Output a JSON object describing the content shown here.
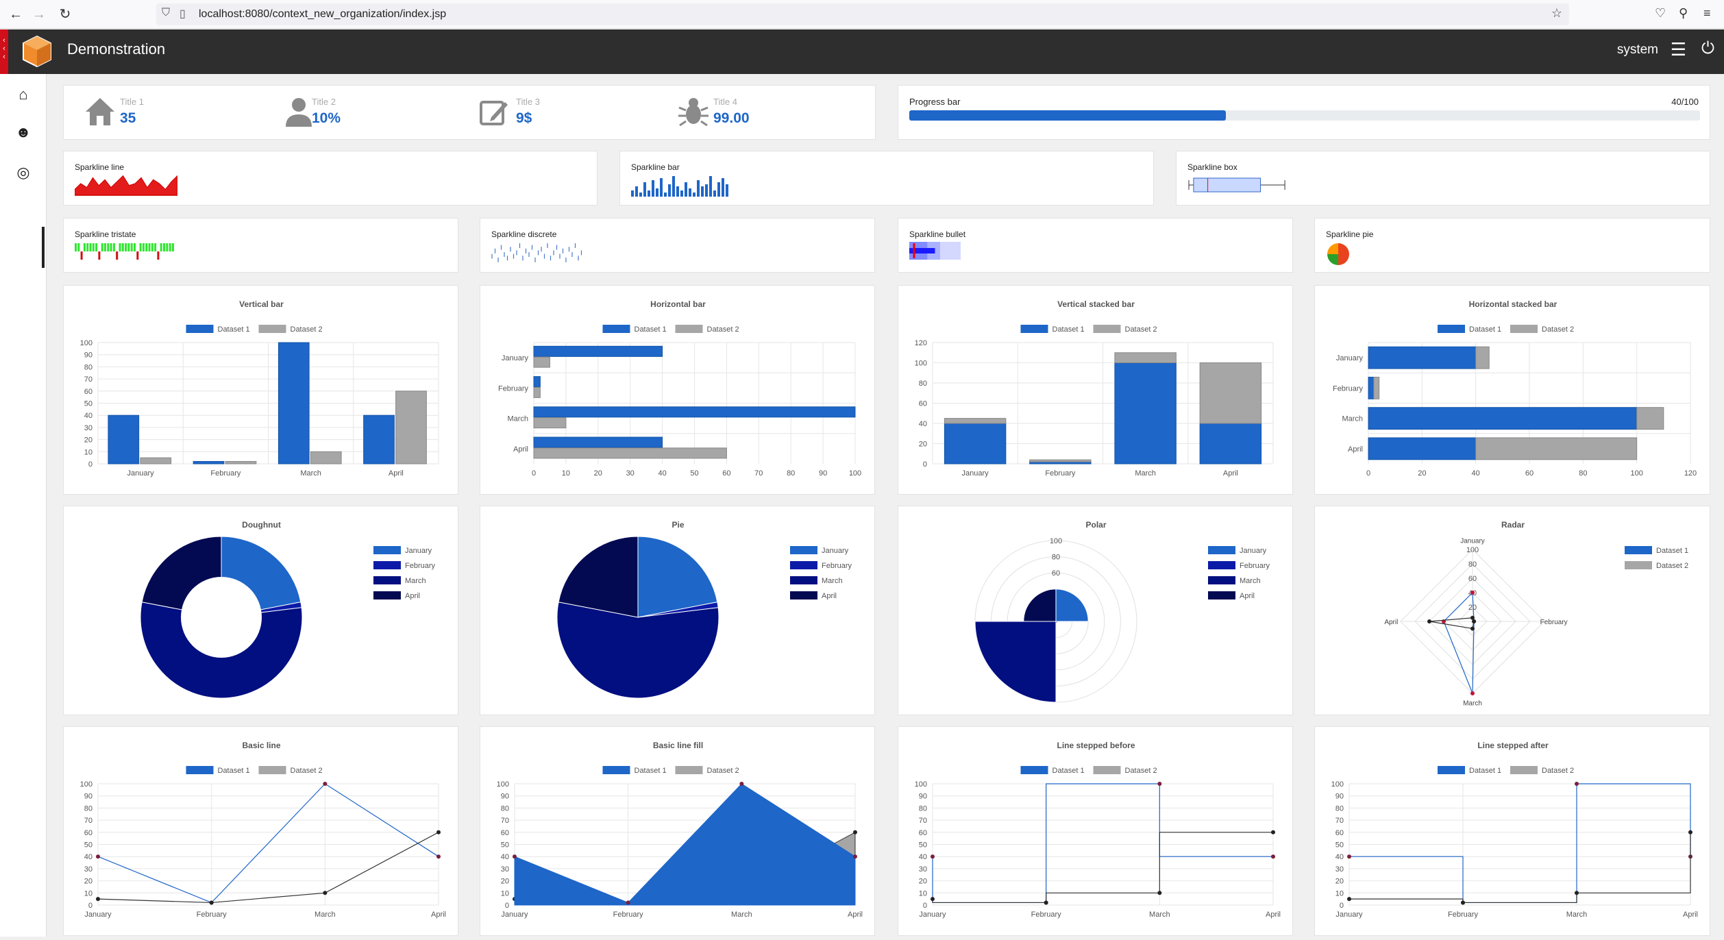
{
  "browser": {
    "url": "localhost:8080/context_new_organization/index.jsp",
    "back": "←",
    "forward": "→",
    "reload": "↻"
  },
  "app": {
    "title": "Demonstration",
    "user": "system"
  },
  "kpis": [
    {
      "label": "Title 1",
      "value": "35",
      "icon": "house-icon"
    },
    {
      "label": "Title 2",
      "value": "10%",
      "icon": "user-icon"
    },
    {
      "label": "Title 3",
      "value": "9$",
      "icon": "edit-icon"
    },
    {
      "label": "Title 4",
      "value": "99.00",
      "icon": "bug-icon"
    }
  ],
  "progress": {
    "label": "Progress bar",
    "text": "40/100",
    "value": 0.4,
    "color": "#1e66c8"
  },
  "sparklines": {
    "line": {
      "label": "Sparkline line",
      "values": [
        3,
        6,
        4,
        9,
        5,
        8,
        4,
        7,
        10,
        5,
        6,
        9,
        4,
        8,
        6,
        3,
        7,
        10
      ]
    },
    "bar": {
      "label": "Sparkline bar",
      "values": [
        3,
        5,
        2,
        7,
        3,
        8,
        4,
        9,
        2,
        6,
        10,
        5,
        3,
        7,
        4,
        2,
        8,
        5,
        6,
        10,
        3,
        7,
        9,
        6
      ]
    },
    "box": {
      "label": "Sparkline box",
      "low": 0,
      "q1": 3,
      "median": 10,
      "q3": 36,
      "high": 48,
      "max": 50
    },
    "tristate": {
      "label": "Sparkline tristate",
      "values": [
        1,
        1,
        -1,
        1,
        1,
        1,
        1,
        1,
        -1,
        1,
        1,
        1,
        1,
        1,
        -1,
        1,
        1,
        1,
        1,
        1,
        1,
        -1,
        1,
        1,
        1,
        1,
        1,
        1,
        -1,
        1,
        1,
        1,
        1,
        1
      ]
    },
    "discrete": {
      "label": "Sparkline discrete",
      "values": [
        4,
        7,
        2,
        9,
        5,
        3,
        8,
        4,
        6,
        10,
        3,
        7,
        5,
        9,
        2,
        6,
        8,
        4,
        10,
        3,
        6,
        9,
        4,
        7,
        2,
        8,
        5,
        10,
        3,
        6
      ]
    },
    "bullet": {
      "label": "Sparkline bullet",
      "ranges": [
        1,
        0.6,
        0.35
      ],
      "value": 0.5,
      "target": 0.1
    },
    "pie": {
      "label": "Sparkline pie",
      "values": [
        50,
        25,
        25
      ],
      "colors": [
        "#e8431e",
        "#2aa02a",
        "#ff9900"
      ]
    }
  },
  "colors": {
    "ds1": "#1e66c8",
    "ds2": "#a6a6a6",
    "c_jan": "#1e66c8",
    "c_feb": "#0c1aa8",
    "c_mar": "#020f80",
    "c_apr": "#030a52"
  },
  "chart_data": [
    {
      "type": "bar",
      "title": "Vertical bar",
      "categories": [
        "January",
        "February",
        "March",
        "April"
      ],
      "series": [
        {
          "name": "Dataset 1",
          "values": [
            40,
            2,
            100,
            40
          ]
        },
        {
          "name": "Dataset 2",
          "values": [
            5,
            2,
            10,
            60
          ]
        }
      ],
      "ylim": [
        0,
        100
      ],
      "yticks": [
        0,
        10,
        20,
        30,
        40,
        50,
        60,
        70,
        80,
        90,
        100
      ]
    },
    {
      "type": "bar",
      "orientation": "horizontal",
      "title": "Horizontal bar",
      "categories": [
        "January",
        "February",
        "March",
        "April"
      ],
      "series": [
        {
          "name": "Dataset 1",
          "values": [
            40,
            2,
            100,
            40
          ]
        },
        {
          "name": "Dataset 2",
          "values": [
            5,
            2,
            10,
            60
          ]
        }
      ],
      "xlim": [
        0,
        100
      ],
      "xticks": [
        0,
        10,
        20,
        30,
        40,
        50,
        60,
        70,
        80,
        90,
        100
      ]
    },
    {
      "type": "bar",
      "stacked": true,
      "title": "Vertical stacked bar",
      "categories": [
        "January",
        "February",
        "March",
        "April"
      ],
      "series": [
        {
          "name": "Dataset 1",
          "values": [
            40,
            2,
            100,
            40
          ]
        },
        {
          "name": "Dataset 2",
          "values": [
            5,
            2,
            10,
            60
          ]
        }
      ],
      "ylim": [
        0,
        120
      ],
      "yticks": [
        0,
        20,
        40,
        60,
        80,
        100,
        120
      ]
    },
    {
      "type": "bar",
      "stacked": true,
      "orientation": "horizontal",
      "title": "Horizontal stacked bar",
      "categories": [
        "January",
        "February",
        "March",
        "April"
      ],
      "series": [
        {
          "name": "Dataset 1",
          "values": [
            40,
            2,
            100,
            40
          ]
        },
        {
          "name": "Dataset 2",
          "values": [
            5,
            2,
            10,
            60
          ]
        }
      ],
      "xlim": [
        0,
        120
      ],
      "xticks": [
        0,
        20,
        40,
        60,
        80,
        100,
        120
      ]
    },
    {
      "type": "pie",
      "variant": "doughnut",
      "title": "Doughnut",
      "labels": [
        "January",
        "February",
        "March",
        "April"
      ],
      "values": [
        40,
        2,
        100,
        40
      ]
    },
    {
      "type": "pie",
      "title": "Pie",
      "labels": [
        "January",
        "February",
        "March",
        "April"
      ],
      "values": [
        40,
        2,
        100,
        40
      ]
    },
    {
      "type": "polar",
      "title": "Polar",
      "labels": [
        "January",
        "February",
        "March",
        "April"
      ],
      "values": [
        40,
        2,
        100,
        40
      ],
      "rlim": [
        0,
        100
      ],
      "rticks": [
        60,
        80,
        100
      ]
    },
    {
      "type": "radar",
      "title": "Radar",
      "labels": [
        "January",
        "February",
        "March",
        "April"
      ],
      "series": [
        {
          "name": "Dataset 1",
          "values": [
            40,
            2,
            100,
            40
          ]
        },
        {
          "name": "Dataset 2",
          "values": [
            5,
            2,
            10,
            60
          ]
        }
      ],
      "rlim": [
        0,
        100
      ],
      "rticks": [
        20,
        40,
        60,
        80,
        100
      ]
    },
    {
      "type": "line",
      "title": "Basic line",
      "categories": [
        "January",
        "February",
        "March",
        "April"
      ],
      "series": [
        {
          "name": "Dataset 1",
          "values": [
            40,
            2,
            100,
            40
          ]
        },
        {
          "name": "Dataset 2",
          "values": [
            5,
            2,
            10,
            60
          ]
        }
      ],
      "ylim": [
        0,
        100
      ],
      "yticks": [
        0,
        10,
        20,
        30,
        40,
        50,
        60,
        70,
        80,
        90,
        100
      ]
    },
    {
      "type": "area",
      "title": "Basic line fill",
      "categories": [
        "January",
        "February",
        "March",
        "April"
      ],
      "series": [
        {
          "name": "Dataset 1",
          "values": [
            40,
            2,
            100,
            40
          ]
        },
        {
          "name": "Dataset 2",
          "values": [
            5,
            2,
            10,
            60
          ]
        }
      ],
      "ylim": [
        0,
        100
      ],
      "yticks": [
        0,
        10,
        20,
        30,
        40,
        50,
        60,
        70,
        80,
        90,
        100
      ]
    },
    {
      "type": "line",
      "stepped": "before",
      "title": "Line stepped before",
      "categories": [
        "January",
        "February",
        "March",
        "April"
      ],
      "series": [
        {
          "name": "Dataset 1",
          "values": [
            40,
            2,
            100,
            40
          ]
        },
        {
          "name": "Dataset 2",
          "values": [
            5,
            2,
            10,
            60
          ]
        }
      ],
      "ylim": [
        0,
        100
      ],
      "yticks": [
        0,
        10,
        20,
        30,
        40,
        50,
        60,
        70,
        80,
        90,
        100
      ]
    },
    {
      "type": "line",
      "stepped": "after",
      "title": "Line stepped after",
      "categories": [
        "January",
        "February",
        "March",
        "April"
      ],
      "series": [
        {
          "name": "Dataset 1",
          "values": [
            40,
            2,
            100,
            40
          ]
        },
        {
          "name": "Dataset 2",
          "values": [
            5,
            2,
            10,
            60
          ]
        }
      ],
      "ylim": [
        0,
        100
      ],
      "yticks": [
        0,
        10,
        20,
        30,
        40,
        50,
        60,
        70,
        80,
        90,
        100
      ]
    }
  ]
}
